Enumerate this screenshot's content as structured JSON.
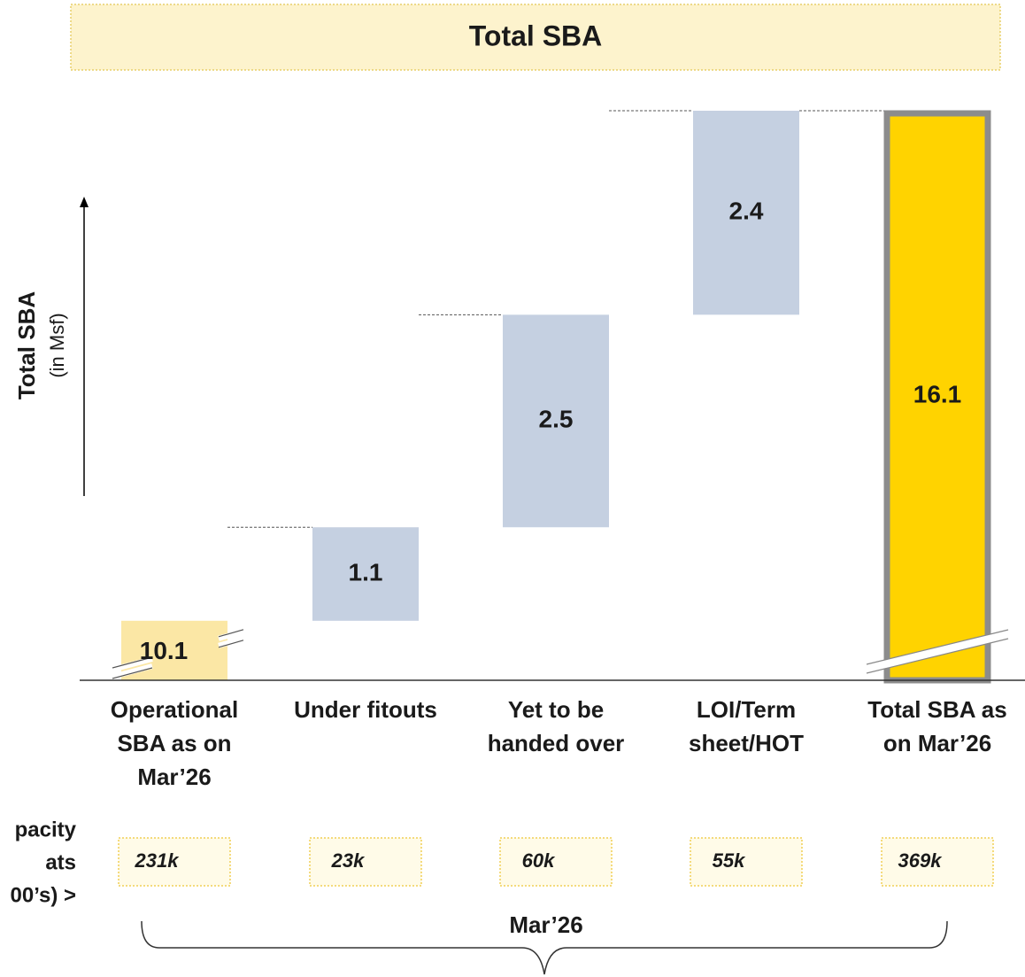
{
  "chart_data": {
    "type": "waterfall",
    "title": "Total SBA",
    "y_axis_label": "Total SBA",
    "y_axis_unit": "(in Msf)",
    "categories": [
      "Operational SBA as on Mar’26",
      "Under fitouts",
      "Yet to be handed over",
      "LOI/Term sheet/HOT",
      "Total SBA as on Mar’26"
    ],
    "values": [
      10.1,
      1.1,
      2.5,
      2.4,
      16.1
    ],
    "colors": [
      "#fbe7a5",
      "#c5d0e1",
      "#c5d0e1",
      "#c5d0e1",
      "#ffd300"
    ],
    "ylim": [
      9.4,
      16.1
    ],
    "row_label": [
      "pacity",
      "ats",
      "00’s) >"
    ],
    "seats": [
      "231k",
      "23k",
      "60k",
      "55k",
      "369k"
    ],
    "period": "Mar’26"
  }
}
